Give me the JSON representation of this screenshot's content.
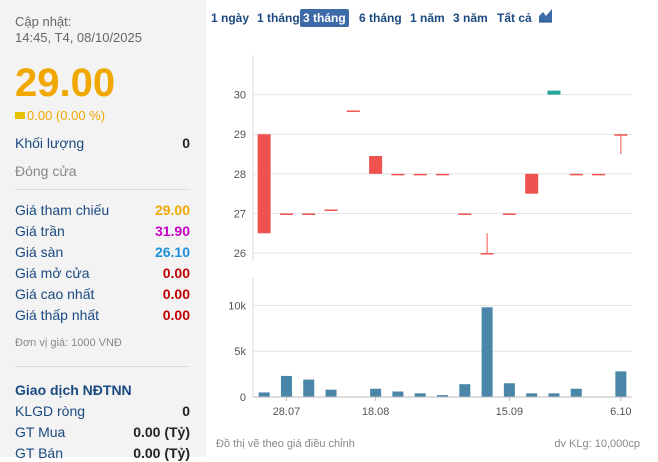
{
  "sidebar": {
    "update_label": "Cập nhật:",
    "update_time": "14:45, T4, 08/10/2025",
    "price": "29.00",
    "change": "0.00 (0.00 %)",
    "volume_label": "Khối lượng",
    "volume_value": "0",
    "close_label": "Đóng cửa",
    "ref_label": "Giá tham chiếu",
    "ref_value": "29.00",
    "ceil_label": "Giá trần",
    "ceil_value": "31.90",
    "floor_label": "Giá sàn",
    "floor_value": "26.10",
    "open_label": "Giá mở cửa",
    "open_value": "0.00",
    "high_label": "Giá cao nhất",
    "high_value": "0.00",
    "low_label": "Giá thấp nhất",
    "low_value": "0.00",
    "unit_note": "Đơn vị giá: 1000 VNĐ",
    "foreign_title": "Giao dịch NĐTNN",
    "net_label": "KLGD ròng",
    "net_value": "0",
    "buy_label": "GT Mua",
    "buy_value": "0.00 (Tỷ)",
    "sell_label": "GT Bán",
    "sell_value": "0.00 (Tỷ)"
  },
  "tabs": [
    "1 ngày",
    "1 tháng",
    "3 tháng",
    "6 tháng",
    "1 năm",
    "3 năm",
    "Tất cả"
  ],
  "active_tab": 2,
  "icons": {
    "chart_type": "area-chart-icon"
  },
  "colors": {
    "up": "#26a69a",
    "down": "#ef5350",
    "volume": "#4a86a8",
    "price": "#f0a800",
    "ceil": "#c800c8",
    "floor": "#1e90d8",
    "zero": "#c00000",
    "navy": "#1a4a80"
  },
  "footer": {
    "note": "Đồ thị vẽ theo giá điều chỉnh",
    "unit": "dv KLg: 10,000cp"
  },
  "chart_data": [
    {
      "type": "candlestick",
      "y_ticks": [
        "26",
        "27",
        "28",
        "29",
        "30"
      ],
      "ylim": [
        25.8,
        31.0
      ],
      "candles": [
        {
          "o": 29.0,
          "h": 29.0,
          "c": 26.5,
          "l": 26.5
        },
        {
          "o": 27.0,
          "h": 27.0,
          "c": 27.0,
          "l": 27.0
        },
        {
          "o": 27.0,
          "h": 27.0,
          "c": 27.0,
          "l": 27.0
        },
        {
          "o": 27.1,
          "h": 27.1,
          "c": 27.1,
          "l": 27.1
        },
        {
          "o": 29.6,
          "h": 29.6,
          "c": 29.6,
          "l": 29.6
        },
        {
          "o": 28.45,
          "h": 28.45,
          "c": 28.0,
          "l": 28.0
        },
        {
          "o": 28.0,
          "h": 28.0,
          "c": 28.0,
          "l": 28.0
        },
        {
          "o": 28.0,
          "h": 28.0,
          "c": 28.0,
          "l": 28.0
        },
        {
          "o": 28.0,
          "h": 28.0,
          "c": 28.0,
          "l": 28.0
        },
        {
          "o": 27.0,
          "h": 27.0,
          "c": 27.0,
          "l": 27.0
        },
        {
          "o": 26.0,
          "h": 26.5,
          "c": 26.0,
          "l": 26.0
        },
        {
          "o": 27.0,
          "h": 27.0,
          "c": 27.0,
          "l": 27.0
        },
        {
          "o": 28.0,
          "h": 28.0,
          "c": 27.5,
          "l": 27.5
        },
        {
          "o": 30.0,
          "h": 30.1,
          "c": 30.1,
          "l": 30.0
        },
        {
          "o": 28.0,
          "h": 28.0,
          "c": 28.0,
          "l": 28.0
        },
        {
          "o": 28.0,
          "h": 28.0,
          "c": 28.0,
          "l": 28.0
        },
        {
          "o": 29.0,
          "h": 29.0,
          "c": 29.0,
          "l": 28.5
        }
      ]
    },
    {
      "type": "bar",
      "y_ticks": [
        "0",
        "5k",
        "10k"
      ],
      "ylim": [
        0,
        13000
      ],
      "values": [
        500,
        2300,
        1900,
        800,
        0,
        900,
        600,
        400,
        200,
        1400,
        9800,
        1500,
        400,
        400,
        900,
        0,
        2800
      ],
      "x_ticks": [
        "28.07",
        "18.08",
        "15.09",
        "6.10"
      ],
      "x_tick_positions": [
        1,
        5,
        11,
        16
      ]
    }
  ]
}
